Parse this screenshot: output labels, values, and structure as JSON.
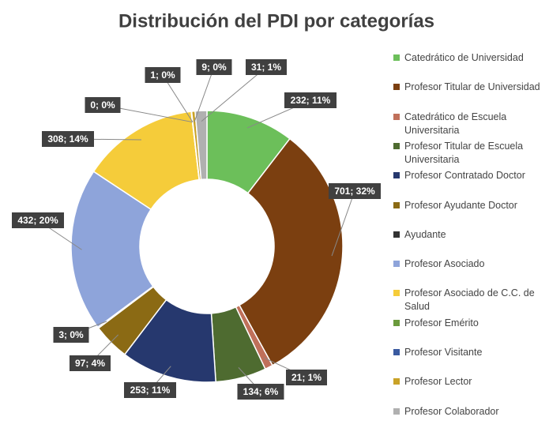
{
  "chart_data": {
    "type": "donut",
    "title": "Distribución del PDI por categorías",
    "categories": [
      "Catedrático de Universidad",
      "Profesor Titular de Universidad",
      "Catedrático de Escuela Universitaria",
      "Profesor Titular de Escuela Universitaria",
      "Profesor Contratado Doctor",
      "Profesor Ayudante Doctor",
      "Ayudante",
      "Profesor Asociado",
      "Profesor Asociado de C.C. de Salud",
      "Profesor Emérito",
      "Profesor Visitante",
      "Profesor Lector",
      "Profesor Colaborador"
    ],
    "values": [
      232,
      701,
      21,
      134,
      253,
      97,
      3,
      432,
      308,
      0,
      1,
      9,
      31
    ],
    "value_labels": [
      "232; 11%",
      "701; 32%",
      "21; 1%",
      "134; 6%",
      "253; 11%",
      "97; 4%",
      "3; 0%",
      "432; 20%",
      "308; 14%",
      "0; 0%",
      "1; 0%",
      "9; 0%",
      "31; 1%"
    ],
    "colors": [
      "#6cbf5a",
      "#7b3f10",
      "#c0705a",
      "#4e6b30",
      "#26386e",
      "#8b6a14",
      "#333333",
      "#8ea4da",
      "#f5cc3a",
      "#6a9a3c",
      "#3a5aa0",
      "#c9a227",
      "#b0b0b0"
    ],
    "legend": "right"
  }
}
